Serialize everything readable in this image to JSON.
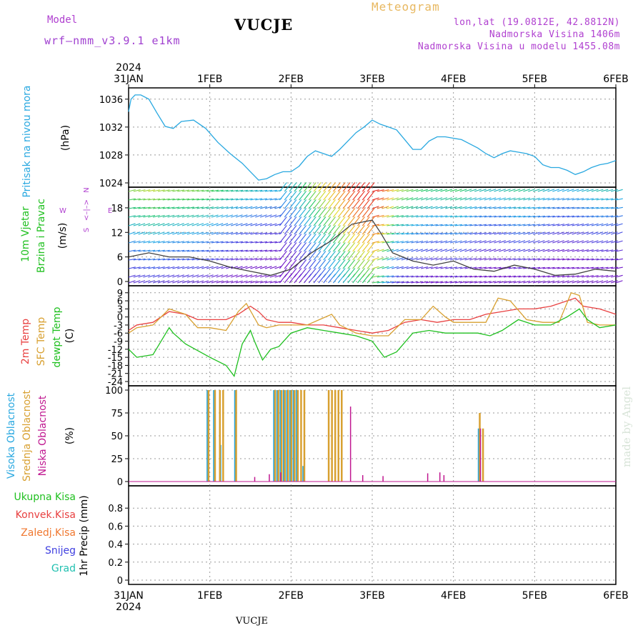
{
  "header": {
    "model_label": "Model",
    "model_version": "wrf–nmm_v3.9.1 e1km",
    "station": "VUCJE",
    "meteogram_label": "Meteogram",
    "lonlat": "lon,lat (19.0812E, 42.8812N)",
    "altitude": "Nadmorska Visina 1406m",
    "model_altitude": "Nadmorska Visina u modelu 1455.08m"
  },
  "footer": {
    "station": "VUCJE",
    "credit": "made by Angel"
  },
  "x_axis": {
    "year": "2024",
    "ticks": [
      "31JAN",
      "1FEB",
      "2FEB",
      "3FEB",
      "4FEB",
      "5FEB",
      "6FEB"
    ]
  },
  "colors": {
    "pressure": "#29a8e0",
    "temp2m": "#e84040",
    "sfc": "#d8a030",
    "dewpt": "#20c020",
    "high_cloud": "#29a8e0",
    "mid_cloud": "#d8a030",
    "low_cloud": "#c01890",
    "total_precip": "#20c020",
    "conv": "#e84040",
    "frozen": "#f07830",
    "snow": "#4040e0",
    "hail": "#20c0b0"
  },
  "chart_data": [
    {
      "type": "line",
      "panel": "pressure",
      "title_lines": [
        "Pritisak na nivou mora",
        "(hPa)"
      ],
      "ylim": [
        1024,
        1037
      ],
      "yticks": [
        1024,
        1028,
        1032,
        1036
      ],
      "x_unit": "days since 31JAN 00UTC",
      "series": [
        {
          "color": "pressure",
          "x": [
            0,
            0.03,
            0.08,
            0.15,
            0.25,
            0.35,
            0.45,
            0.55,
            0.65,
            0.8,
            0.95,
            1.1,
            1.25,
            1.4,
            1.5,
            1.6,
            1.7,
            1.8,
            1.9,
            2.0,
            2.1,
            2.2,
            2.3,
            2.4,
            2.5,
            2.6,
            2.7,
            2.8,
            2.9,
            3.0,
            3.1,
            3.2,
            3.3,
            3.4,
            3.5,
            3.6,
            3.7,
            3.8,
            3.9,
            4.0,
            4.1,
            4.2,
            4.3,
            4.4,
            4.5,
            4.6,
            4.7,
            4.8,
            4.9,
            5.0,
            5.1,
            5.2,
            5.3,
            5.4,
            5.5,
            5.6,
            5.7,
            5.8,
            5.9,
            6.0
          ],
          "y": [
            1034.2,
            1036.0,
            1036.6,
            1036.6,
            1036.0,
            1034.0,
            1032.1,
            1031.8,
            1032.8,
            1033.0,
            1031.8,
            1029.8,
            1028.2,
            1026.8,
            1025.6,
            1024.4,
            1024.6,
            1025.2,
            1025.6,
            1025.6,
            1026.4,
            1027.8,
            1028.6,
            1028.2,
            1027.8,
            1028.8,
            1030.0,
            1031.2,
            1032.0,
            1033.0,
            1032.4,
            1032.0,
            1031.6,
            1030.2,
            1028.8,
            1028.8,
            1030.0,
            1030.6,
            1030.6,
            1030.4,
            1030.2,
            1029.6,
            1029.0,
            1028.2,
            1027.6,
            1028.2,
            1028.6,
            1028.4,
            1028.2,
            1027.8,
            1026.6,
            1026.2,
            1026.2,
            1025.8,
            1025.2,
            1025.6,
            1026.2,
            1026.6,
            1026.8,
            1027.2
          ]
        }
      ]
    },
    {
      "type": "wind",
      "panel": "wind",
      "title_lines": [
        "10m Vjetar",
        "Brzina i Pravac",
        "(m/s)"
      ],
      "compass_legend": [
        "W",
        "<–|–>",
        "E",
        "N",
        "S"
      ],
      "ylim": [
        0,
        22
      ],
      "yticks": [
        0,
        6,
        12,
        18
      ],
      "series": [
        {
          "name": "speed",
          "x": [
            0,
            0.25,
            0.5,
            0.75,
            1.0,
            1.25,
            1.5,
            1.75,
            2.0,
            2.25,
            2.5,
            2.75,
            3.0,
            3.1,
            3.25,
            3.5,
            3.75,
            4.0,
            4.25,
            4.5,
            4.75,
            5.0,
            5.25,
            5.5,
            5.75,
            6.0
          ],
          "y": [
            6,
            7,
            6,
            6,
            5,
            3.5,
            2.5,
            1.5,
            3,
            7,
            10,
            14,
            15,
            12,
            7,
            5,
            4,
            5,
            3,
            2.5,
            4,
            3,
            1.5,
            1.8,
            3,
            2.5
          ]
        }
      ]
    },
    {
      "type": "line",
      "panel": "temperature",
      "title_lines": [
        "2m Temp",
        "SFC Temp",
        "dewpt Temp",
        "(C)"
      ],
      "ylim": [
        -24,
        10
      ],
      "yticks": [
        -24,
        -21,
        -18,
        -15,
        -12,
        -9,
        -6,
        -3,
        0,
        3,
        6,
        9
      ],
      "series": [
        {
          "name": "2m Temp",
          "color": "temp2m",
          "x": [
            0,
            0.1,
            0.3,
            0.5,
            0.7,
            0.85,
            1.0,
            1.2,
            1.35,
            1.5,
            1.6,
            1.7,
            1.85,
            2.0,
            2.2,
            2.4,
            2.6,
            2.8,
            3.0,
            3.2,
            3.4,
            3.6,
            3.8,
            4.0,
            4.2,
            4.4,
            4.6,
            4.8,
            5.0,
            5.2,
            5.4,
            5.5,
            5.6,
            5.8,
            6.0
          ],
          "y": [
            -5,
            -3,
            -2,
            2,
            1,
            -1,
            -1,
            -1,
            1,
            4,
            2,
            -1,
            -2,
            -2,
            -3,
            -3,
            -4,
            -5,
            -6,
            -5,
            -2,
            -1,
            -2,
            -1,
            -1,
            1,
            2,
            3,
            3,
            4,
            6,
            7,
            4,
            3,
            1
          ]
        },
        {
          "name": "SFC Temp",
          "color": "sfc",
          "x": [
            0,
            0.1,
            0.3,
            0.5,
            0.7,
            0.85,
            1.0,
            1.2,
            1.35,
            1.45,
            1.6,
            1.7,
            1.85,
            2.0,
            2.2,
            2.35,
            2.5,
            2.6,
            2.8,
            3.0,
            3.2,
            3.4,
            3.6,
            3.75,
            3.9,
            4.0,
            4.2,
            4.4,
            4.55,
            4.7,
            4.9,
            5.1,
            5.3,
            5.45,
            5.55,
            5.65,
            5.8,
            6.0
          ],
          "y": [
            -6,
            -4,
            -3,
            3,
            1,
            -4,
            -4,
            -5,
            2,
            5,
            -3,
            -4,
            -3,
            -3,
            -3,
            -1,
            1,
            -3,
            -6,
            -7,
            -7,
            -1,
            -1,
            4,
            0,
            -2,
            -2,
            -2,
            7,
            6,
            -1,
            -2,
            -2,
            9,
            8,
            -2,
            -3,
            -3
          ]
        },
        {
          "name": "dewpt Temp",
          "color": "dewpt",
          "x": [
            0,
            0.1,
            0.3,
            0.5,
            0.55,
            0.7,
            1.0,
            1.2,
            1.3,
            1.4,
            1.5,
            1.55,
            1.65,
            1.75,
            1.85,
            2.0,
            2.2,
            2.4,
            2.6,
            2.8,
            3.0,
            3.15,
            3.3,
            3.5,
            3.7,
            3.9,
            4.1,
            4.3,
            4.45,
            4.6,
            4.8,
            5.0,
            5.2,
            5.4,
            5.55,
            5.65,
            5.8,
            6.0
          ],
          "y": [
            -12,
            -15,
            -14,
            -4,
            -6,
            -10,
            -15,
            -18,
            -22,
            -10,
            -5,
            -9,
            -16,
            -12,
            -11,
            -6,
            -4,
            -5,
            -6,
            -7,
            -9,
            -15,
            -13,
            -6,
            -5,
            -6,
            -6,
            -6,
            -7,
            -5,
            -1,
            -3,
            -3,
            0,
            3,
            -1,
            -4,
            -3
          ]
        }
      ]
    },
    {
      "type": "bar",
      "panel": "cloud",
      "title_lines": [
        "Visoka Oblacnost",
        "Srednja Oblacnost",
        "Niska Oblacnost",
        "(%)"
      ],
      "ylim": [
        0,
        100
      ],
      "yticks": [
        0,
        25,
        50,
        75,
        100
      ],
      "series": [
        {
          "name": "Visoka Oblacnost",
          "color": "high_cloud",
          "x": [
            0.96,
            1.04,
            1.12,
            1.3,
            1.78,
            1.82,
            1.86,
            1.9,
            1.94,
            1.98,
            2.02,
            2.06,
            2.14,
            4.3
          ],
          "y": [
            100,
            100,
            40,
            100,
            100,
            100,
            100,
            100,
            100,
            100,
            100,
            100,
            17,
            58
          ]
        },
        {
          "name": "Srednja Oblacnost",
          "color": "mid_cloud",
          "x": [
            0.96,
            1.04,
            1.1,
            1.14,
            1.3,
            1.78,
            1.82,
            1.86,
            1.9,
            1.94,
            1.98,
            2.02,
            2.06,
            2.1,
            2.14,
            2.44,
            2.48,
            2.52,
            2.56,
            2.6,
            4.3,
            4.34
          ],
          "y": [
            100,
            100,
            100,
            100,
            100,
            100,
            100,
            100,
            100,
            100,
            100,
            100,
            100,
            100,
            100,
            100,
            100,
            100,
            100,
            100,
            75,
            58
          ]
        },
        {
          "name": "Niska Oblacnost",
          "color": "low_cloud",
          "x": [
            1.52,
            1.7,
            1.84,
            2.7,
            2.85,
            3.1,
            3.65,
            3.8,
            3.85,
            4.3
          ],
          "y": [
            5,
            8,
            10,
            82,
            7,
            6,
            9,
            10,
            7,
            58
          ]
        }
      ]
    },
    {
      "type": "bar",
      "panel": "precipitation",
      "ylabel": "1hr Precip (mm)",
      "ylim": [
        0,
        1
      ],
      "yticks": [
        0,
        0.2,
        0.4,
        0.6,
        0.8
      ],
      "legend": [
        "Ukupna Kisa",
        "Konvek.Kisa",
        "Zaledj.Kisa",
        "Snijeg",
        "Grad"
      ],
      "series": []
    }
  ]
}
